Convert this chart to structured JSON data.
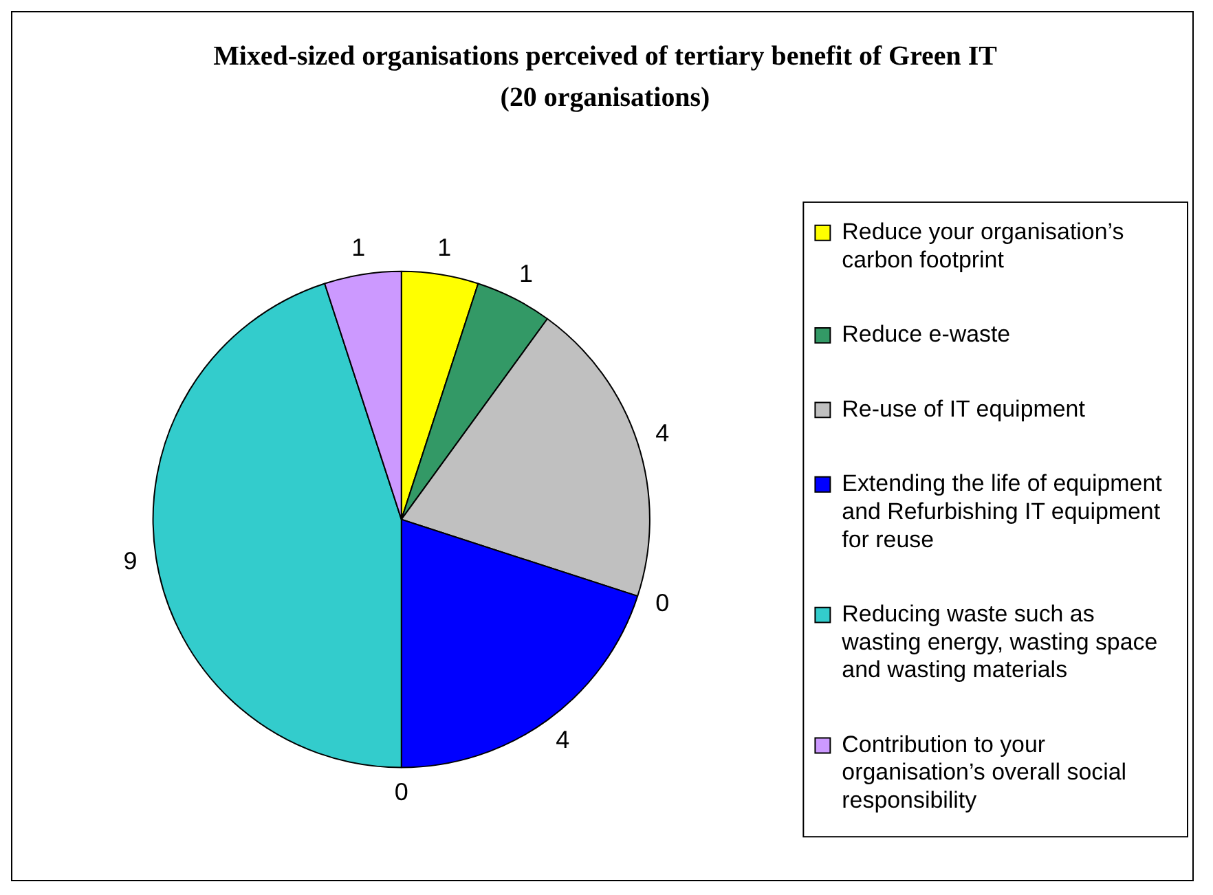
{
  "chart_data": {
    "type": "pie",
    "title": "Mixed-sized organisations perceived of tertiary benefit of Green IT",
    "subtitle": "(20 organisations)",
    "categories": [
      "Reduce your organisation’s carbon footprint",
      "Reduce e-waste",
      "Re-use of IT equipment",
      null,
      "Extending the life of equipment and Refurbishing IT equipment for reuse",
      null,
      "Reducing waste such as wasting energy, wasting space and wasting materials",
      "Contribution to your organisation’s overall social responsibility"
    ],
    "values": [
      1,
      1,
      4,
      0,
      4,
      0,
      9,
      1
    ],
    "value_labels": [
      "1",
      "1",
      "4",
      "0",
      "4",
      "0",
      "9",
      "1"
    ],
    "colors": [
      "#ffff00",
      "#339966",
      "#c0c0c0",
      null,
      "#0000ff",
      null,
      "#33cccc",
      "#cc99ff"
    ],
    "legend": "right"
  }
}
